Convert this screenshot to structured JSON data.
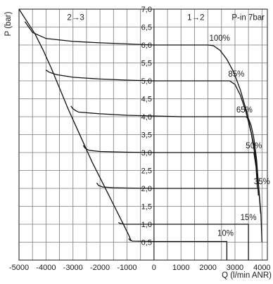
{
  "chart_data": {
    "type": "line",
    "title": "",
    "xlabel": "Q (l/min ANR)",
    "ylabel": "P (bar)",
    "xlim": [
      -5000,
      4200
    ],
    "ylim": [
      0,
      7
    ],
    "grid": true,
    "x_ticks": [
      -5000,
      -4000,
      -3000,
      -2000,
      -1000,
      0,
      1000,
      2000,
      3000,
      4000
    ],
    "x_tick_labels": [
      "-5000",
      "-4000",
      "-3000",
      "-2000",
      "-1000",
      "0",
      "1000",
      "2000",
      "3000",
      "4000"
    ],
    "y_ticks": [
      0.5,
      1.0,
      1.5,
      2.0,
      2.5,
      3.0,
      3.5,
      4.0,
      4.5,
      5.0,
      5.5,
      6.0,
      6.5,
      7.0
    ],
    "y_tick_labels": [
      "0,5",
      "1,0",
      "1,5",
      "2,0",
      "2,5",
      "3,0",
      "3,5",
      "4,0",
      "4,5",
      "5,0",
      "5,5",
      "6,0",
      "6,5",
      "7,0"
    ],
    "annotations": {
      "exhaust_region": "2→3",
      "supply_region": "1→2",
      "supply_pressure": "P-in 7bar"
    },
    "series": [
      {
        "label": "100%",
        "label_at": [
          2050,
          6.12
        ],
        "x": [
          -4780,
          -4500,
          -4000,
          -3000,
          -2000,
          -1000,
          0,
          1000,
          2000,
          2200,
          2450,
          2700,
          2950,
          3200,
          3450,
          3700,
          3850,
          3960,
          4000
        ],
        "y": [
          6.65,
          6.35,
          6.18,
          6.1,
          6.06,
          6.03,
          6.0,
          6.0,
          6.0,
          5.98,
          5.85,
          5.6,
          5.25,
          4.75,
          4.1,
          3.2,
          2.3,
          1.3,
          0.5
        ]
      },
      {
        "label": "85%",
        "label_at": [
          2750,
          5.12
        ],
        "x": [
          -4000,
          -3900,
          -3800,
          -3600,
          -3000,
          -2000,
          -1000,
          0,
          1000,
          2000,
          2800,
          3000,
          3200,
          3400,
          3600,
          3750,
          3880,
          3950
        ],
        "y": [
          5.3,
          5.25,
          5.22,
          5.17,
          5.1,
          5.05,
          5.02,
          5.0,
          5.0,
          5.0,
          5.0,
          4.9,
          4.6,
          4.15,
          3.55,
          2.9,
          2.0,
          1.3
        ]
      },
      {
        "label": "65%",
        "label_at": [
          3050,
          4.12
        ],
        "x": [
          -3080,
          -3000,
          -2900,
          -2800,
          -2000,
          -1000,
          0,
          1000,
          2000,
          3000,
          3400,
          3500,
          3600,
          3700,
          3800,
          3880
        ],
        "y": [
          4.3,
          4.22,
          4.17,
          4.13,
          4.08,
          4.04,
          4.02,
          4.0,
          4.0,
          4.0,
          4.0,
          3.95,
          3.75,
          3.4,
          2.8,
          2.0
        ]
      },
      {
        "label": "50%",
        "label_at": [
          3400,
          3.12
        ],
        "x": [
          -2620,
          -2550,
          -2400,
          -2000,
          -1000,
          0,
          1000,
          2000,
          3000,
          3700,
          3780,
          3830
        ],
        "y": [
          3.2,
          3.12,
          3.06,
          3.03,
          3.01,
          3.0,
          3.0,
          3.0,
          3.0,
          3.0,
          2.6,
          2.0
        ]
      },
      {
        "label": "35%",
        "label_at": [
          3700,
          2.12
        ],
        "x": [
          -2120,
          -2050,
          -1900,
          -1500,
          -1000,
          0,
          1000,
          2000,
          3000,
          3850,
          3870
        ],
        "y": [
          2.15,
          2.08,
          2.04,
          2.02,
          2.01,
          2.0,
          2.0,
          2.0,
          2.0,
          2.0,
          1.8
        ]
      },
      {
        "label": "15%",
        "label_at": [
          3200,
          1.12
        ],
        "x": [
          -1320,
          -1250,
          -1100,
          -1000,
          0,
          1000,
          2000,
          3000,
          3500,
          3500
        ],
        "y": [
          1.05,
          1.02,
          1.0,
          1.0,
          1.0,
          1.0,
          1.0,
          1.0,
          1.0,
          0.0
        ]
      },
      {
        "label": "10%",
        "label_at": [
          2350,
          0.68
        ],
        "x": [
          -940,
          -880,
          -800,
          0,
          1000,
          2000,
          2700,
          2700
        ],
        "y": [
          0.6,
          0.55,
          0.53,
          0.52,
          0.52,
          0.52,
          0.52,
          0.0
        ]
      },
      {
        "label": "",
        "x": [
          -5000,
          -4700,
          -4400,
          -4100,
          -3800,
          -3500,
          -3200,
          -2900,
          -2600,
          -2300,
          -2000,
          -1700,
          -1400,
          -1100,
          -950,
          -850
        ],
        "y": [
          7.0,
          6.65,
          6.3,
          5.85,
          5.35,
          4.8,
          4.25,
          3.75,
          3.25,
          2.75,
          2.3,
          1.85,
          1.4,
          0.95,
          0.72,
          0.55
        ]
      }
    ]
  }
}
